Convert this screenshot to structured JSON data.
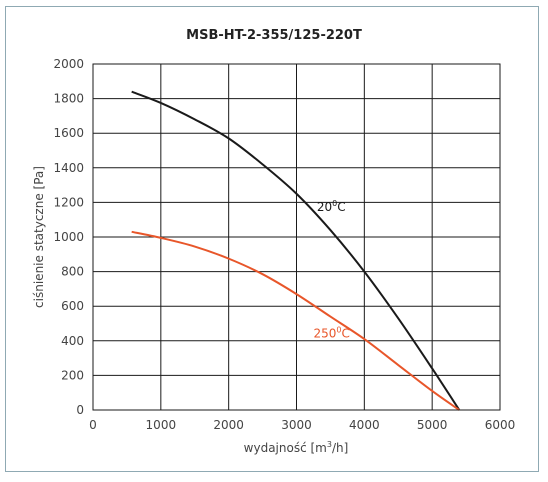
{
  "chart_data": {
    "type": "line",
    "title": "MSB-HT-2-355/125-220T",
    "xlabel": "wydajność [m³/h]",
    "xlabel_main": "wydajność [m",
    "xlabel_sup": "3",
    "xlabel_tail": "/h]",
    "ylabel": "ciśnienie statyczne [Pa]",
    "xlim": [
      0,
      6000
    ],
    "ylim": [
      0,
      2000
    ],
    "xticks": [
      0,
      1000,
      2000,
      3000,
      4000,
      5000,
      6000
    ],
    "yticks": [
      0,
      200,
      400,
      600,
      800,
      1000,
      1200,
      1400,
      1600,
      1800,
      2000
    ],
    "grid": true,
    "series": [
      {
        "name": "20°C",
        "label_main": "20",
        "label_sup": "0",
        "label_tail": "C",
        "color": "#1a1a1a",
        "label_at": [
          3300,
          1150
        ],
        "x": [
          570,
          1000,
          1500,
          2000,
          2500,
          3000,
          3500,
          4000,
          4500,
          5000,
          5400
        ],
        "y": [
          1840,
          1775,
          1680,
          1570,
          1420,
          1250,
          1040,
          800,
          530,
          240,
          0
        ]
      },
      {
        "name": "250°C",
        "label_main": "250",
        "label_sup": "0",
        "label_tail": "C",
        "color": "#e8562a",
        "label_at": [
          3250,
          420
        ],
        "x": [
          570,
          1000,
          1500,
          2000,
          2500,
          3000,
          3500,
          4000,
          4500,
          5000,
          5400
        ],
        "y": [
          1030,
          995,
          945,
          875,
          785,
          670,
          540,
          410,
          260,
          110,
          0
        ]
      }
    ]
  }
}
